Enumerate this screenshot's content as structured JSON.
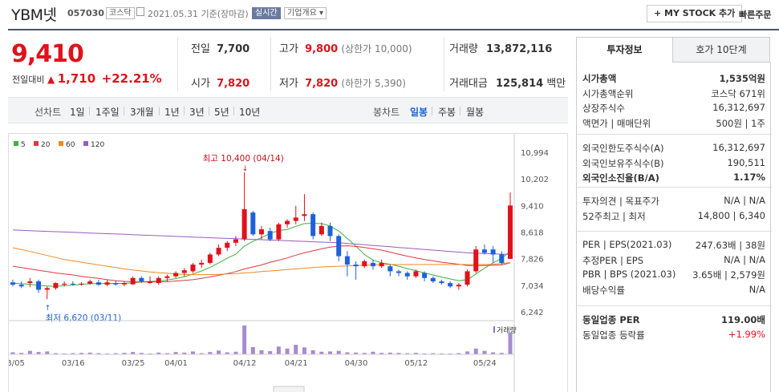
{
  "header": {
    "name": "YBM넷",
    "code": "057030",
    "market": "코스닥",
    "date_text": "2021.05.31 기준(장마감)",
    "realtime": "실시간",
    "overview": "기업개요 ▾",
    "mystock": "+ MY STOCK 추가",
    "quick_order": "빠른주문"
  },
  "summary": {
    "price": "9,410",
    "change_label": "전일대비",
    "change": "1,710",
    "change_pct": "+22.21%",
    "prev_label": "전일",
    "prev": "7,700",
    "open_label": "시가",
    "open": "7,820",
    "high_label": "고가",
    "high": "9,800",
    "high_sub": "(상한가 10,000)",
    "low_label": "저가",
    "low": "7,820",
    "low_sub": "(하한가 5,390)",
    "volume_label": "거래량",
    "volume": "13,872,116",
    "amount_label": "거래대금",
    "amount": "125,814",
    "amount_unit": "백만"
  },
  "periods": {
    "line_label": "선차트",
    "items": [
      "1일",
      "1주일",
      "3개월",
      "1년",
      "3년",
      "5년",
      "10년"
    ],
    "candle_label": "봉차트",
    "candle_items": [
      "일봉",
      "주봉",
      "월봉"
    ],
    "candle_active": "일봉"
  },
  "chart_data": {
    "type": "candlestick",
    "legend": [
      {
        "name": "5",
        "color": "#3fb13f"
      },
      {
        "name": "20",
        "color": "#e0393e"
      },
      {
        "name": "60",
        "color": "#f08a1f"
      },
      {
        "name": "120",
        "color": "#9a5cc0"
      }
    ],
    "ylim": [
      6242,
      10994
    ],
    "y_ticks": [
      "10,994",
      "10,202",
      "9,410",
      "8,618",
      "7,826",
      "7,034",
      "6,242"
    ],
    "x_ticks": [
      "03/05",
      "03/16",
      "03/25",
      "04/01",
      "04/12",
      "04/21",
      "04/30",
      "05/12",
      "05/24"
    ],
    "x_tick_index": [
      0,
      7,
      14,
      19,
      27,
      33,
      40,
      47,
      55
    ],
    "annotations": {
      "high": "최고 10,400 (04/14)",
      "low": "최저 6,620 (03/11)"
    },
    "volume_label": "거래량",
    "candles": [
      [
        7120,
        7200,
        7000,
        7050
      ],
      [
        7050,
        7150,
        6950,
        7000
      ],
      [
        7100,
        7250,
        6980,
        7150
      ],
      [
        7150,
        7200,
        6800,
        6900
      ],
      [
        6900,
        7000,
        6620,
        6950
      ],
      [
        6950,
        7120,
        6900,
        7100
      ],
      [
        7050,
        7150,
        7000,
        7080
      ],
      [
        7080,
        7150,
        7020,
        7060
      ],
      [
        7060,
        7120,
        7020,
        7080
      ],
      [
        7080,
        7200,
        7050,
        7150
      ],
      [
        7120,
        7200,
        7020,
        7050
      ],
      [
        7050,
        7200,
        7000,
        7120
      ],
      [
        7100,
        7180,
        7020,
        7060
      ],
      [
        7060,
        7150,
        7000,
        7100
      ],
      [
        7060,
        7300,
        7050,
        7250
      ],
      [
        7250,
        7300,
        7100,
        7150
      ],
      [
        7100,
        7300,
        7080,
        7150
      ],
      [
        7100,
        7300,
        7050,
        7250
      ],
      [
        7250,
        7350,
        7150,
        7300
      ],
      [
        7300,
        7450,
        7250,
        7400
      ],
      [
        7400,
        7550,
        7300,
        7480
      ],
      [
        7450,
        7700,
        7400,
        7650
      ],
      [
        7650,
        7800,
        7550,
        7700
      ],
      [
        7700,
        8000,
        7650,
        7950
      ],
      [
        7950,
        8250,
        7900,
        8150
      ],
      [
        8150,
        8350,
        8050,
        8300
      ],
      [
        8300,
        8500,
        8200,
        8400
      ],
      [
        8400,
        10400,
        8350,
        9300
      ],
      [
        9200,
        9250,
        8500,
        8550
      ],
      [
        8550,
        8800,
        8400,
        8700
      ],
      [
        8650,
        8750,
        8350,
        8400
      ],
      [
        8400,
        8900,
        8350,
        8850
      ],
      [
        8850,
        9000,
        8750,
        8950
      ],
      [
        8950,
        9400,
        8850,
        9050
      ],
      [
        9100,
        9750,
        8950,
        9150
      ],
      [
        9150,
        9200,
        8400,
        8500
      ],
      [
        8550,
        8900,
        8500,
        8800
      ],
      [
        8800,
        8900,
        8350,
        8500
      ],
      [
        8500,
        8550,
        7750,
        7900
      ],
      [
        7900,
        8050,
        7300,
        7650
      ],
      [
        7650,
        7750,
        7200,
        7600
      ],
      [
        7600,
        7800,
        7550,
        7750
      ],
      [
        7700,
        7800,
        7500,
        7600
      ],
      [
        7600,
        7800,
        7550,
        7700
      ],
      [
        7600,
        7650,
        7300,
        7450
      ],
      [
        7450,
        7500,
        7300,
        7400
      ],
      [
        7400,
        7450,
        7200,
        7300
      ],
      [
        7300,
        7500,
        7250,
        7450
      ],
      [
        7400,
        7450,
        7150,
        7250
      ],
      [
        7250,
        7300,
        7100,
        7150
      ],
      [
        7150,
        7200,
        7050,
        7100
      ],
      [
        7100,
        7150,
        6950,
        7000
      ],
      [
        7000,
        7100,
        6900,
        7050
      ],
      [
        7050,
        7500,
        7000,
        7450
      ],
      [
        7450,
        8200,
        7400,
        8100
      ],
      [
        8100,
        8250,
        7950,
        8000
      ],
      [
        8100,
        8200,
        7700,
        7950
      ],
      [
        7950,
        8050,
        7650,
        7700
      ],
      [
        7820,
        9800,
        7820,
        9410
      ]
    ],
    "ma": {
      "5": [
        7100,
        7080,
        7060,
        7030,
        7010,
        7000,
        7020,
        7040,
        7060,
        7080,
        7080,
        7090,
        7090,
        7090,
        7110,
        7130,
        7150,
        7160,
        7190,
        7230,
        7290,
        7370,
        7460,
        7570,
        7700,
        7840,
        7960,
        8200,
        8340,
        8450,
        8580,
        8660,
        8700,
        8790,
        8870,
        8880,
        8870,
        8800,
        8650,
        8430,
        8200,
        7950,
        7780,
        7700,
        7660,
        7600,
        7530,
        7470,
        7400,
        7340,
        7280,
        7220,
        7170,
        7200,
        7370,
        7540,
        7700,
        7840,
        8040
      ],
      "20": [
        7600,
        7560,
        7520,
        7480,
        7440,
        7400,
        7370,
        7340,
        7300,
        7270,
        7240,
        7200,
        7170,
        7150,
        7140,
        7130,
        7130,
        7130,
        7140,
        7160,
        7180,
        7200,
        7240,
        7280,
        7330,
        7380,
        7440,
        7520,
        7580,
        7640,
        7720,
        7780,
        7850,
        7930,
        8000,
        8060,
        8120,
        8170,
        8200,
        8210,
        8190,
        8160,
        8120,
        8080,
        8020,
        7960,
        7900,
        7850,
        7800,
        7760,
        7720,
        7690,
        7660,
        7620,
        7620,
        7620,
        7630,
        7640,
        7700
      ],
      "60": [
        8150,
        8100,
        8040,
        7980,
        7920,
        7860,
        7800,
        7760,
        7720,
        7680,
        7640,
        7600,
        7560,
        7520,
        7490,
        7460,
        7430,
        7410,
        7390,
        7370,
        7360,
        7350,
        7350,
        7350,
        7360,
        7370,
        7380,
        7400,
        7420,
        7440,
        7460,
        7480,
        7500,
        7520,
        7540,
        7560,
        7580,
        7590,
        7600,
        7610,
        7620,
        7630,
        7640,
        7650,
        7650,
        7650,
        7650,
        7650,
        7650,
        7650,
        7650,
        7650,
        7650,
        7650,
        7650,
        7650,
        7660,
        7680,
        7710
      ],
      "120": [
        8680,
        8670,
        8660,
        8650,
        8640,
        8630,
        8620,
        8610,
        8600,
        8590,
        8580,
        8570,
        8560,
        8550,
        8540,
        8530,
        8520,
        8510,
        8500,
        8490,
        8480,
        8470,
        8460,
        8450,
        8440,
        8430,
        8420,
        8410,
        8400,
        8390,
        8380,
        8370,
        8360,
        8350,
        8340,
        8330,
        8320,
        8310,
        8300,
        8280,
        8260,
        8240,
        8220,
        8200,
        8180,
        8160,
        8140,
        8120,
        8100,
        8080,
        8060,
        8040,
        8020,
        8000,
        7990,
        7980,
        7970,
        7960,
        7960
      ]
    },
    "volume": [
      0.07,
      0.05,
      0.12,
      0.08,
      0.1,
      0.04,
      0.03,
      0.04,
      0.05,
      0.06,
      0.04,
      0.03,
      0.04,
      0.05,
      0.08,
      0.05,
      0.03,
      0.06,
      0.04,
      0.08,
      0.06,
      0.1,
      0.04,
      0.08,
      0.13,
      0.07,
      0.09,
      1.0,
      0.25,
      0.14,
      0.11,
      0.27,
      0.2,
      0.33,
      0.24,
      0.14,
      0.09,
      0.1,
      0.12,
      0.07,
      0.06,
      0.05,
      0.09,
      0.05,
      0.06,
      0.05,
      0.04,
      0.05,
      0.03,
      0.04,
      0.03,
      0.02,
      0.04,
      0.1,
      0.2,
      0.12,
      0.07,
      0.05,
      0.76
    ]
  },
  "invest": {
    "tab_active": "투자정보",
    "tab_other": "호가 10단계",
    "g1": [
      {
        "k": "시가총액",
        "v": "1,535억원",
        "bold": true
      },
      {
        "k": "시가총액순위",
        "v": "코스닥 671위"
      },
      {
        "k": "상장주식수",
        "v": "16,312,697"
      },
      {
        "k": "액면가 | 매매단위",
        "v": "500원 | 1주"
      }
    ],
    "g2": [
      {
        "k": "외국인한도주식수(A)",
        "v": "16,312,697"
      },
      {
        "k": "외국인보유주식수(B)",
        "v": "190,511"
      },
      {
        "k": "외국인소진율(B/A)",
        "v": "1.17%",
        "bold": true
      }
    ],
    "g3": [
      {
        "k": "투자의견 | 목표주가",
        "v": "N/A | N/A"
      },
      {
        "k": "52주최고 | 최저",
        "v": "14,800 | 6,340"
      }
    ],
    "g4": [
      {
        "k": "PER | EPS(2021.03)",
        "v": "247.63배 | 38원"
      },
      {
        "k": "추정PER | EPS",
        "v": "N/A | N/A"
      },
      {
        "k": "PBR | BPS (2021.03)",
        "v": "3.65배 | 2,579원"
      },
      {
        "k": "배당수익률",
        "v": "N/A"
      }
    ],
    "g5": [
      {
        "k": "동일업종 PER",
        "v": "119.00배",
        "bold": true
      },
      {
        "k": "동일업종 등락률",
        "v": "+1.99%",
        "red": true
      }
    ]
  }
}
